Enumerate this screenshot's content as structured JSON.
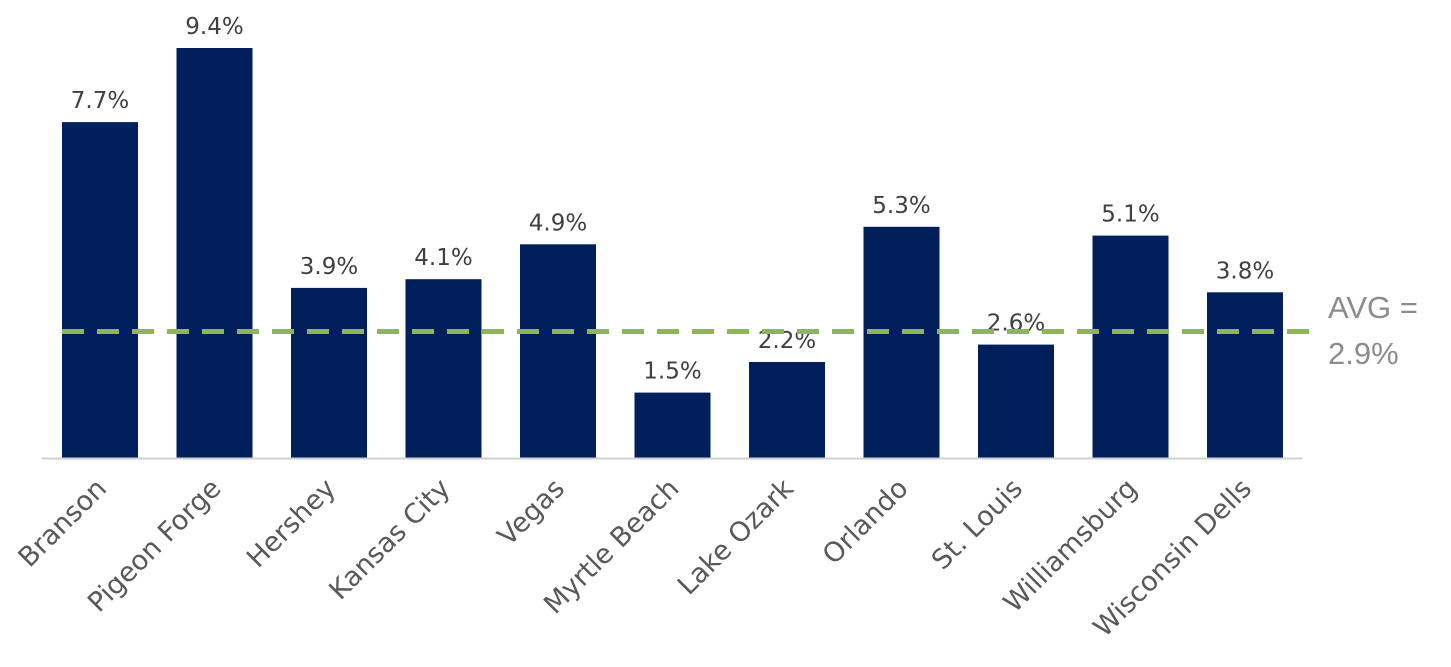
{
  "chart_data": {
    "type": "bar",
    "title": "",
    "xlabel": "",
    "ylabel": "",
    "categories": [
      "Branson",
      "Pigeon Forge",
      "Hershey",
      "Kansas City",
      "Vegas",
      "Myrtle Beach",
      "Lake Ozark",
      "Orlando",
      "St. Louis",
      "Williamsburg",
      "Wisconsin Dells"
    ],
    "values": [
      7.7,
      9.4,
      3.9,
      4.1,
      4.9,
      1.5,
      2.2,
      5.3,
      2.6,
      5.1,
      3.8
    ],
    "value_labels": [
      "7.7%",
      "9.4%",
      "3.9%",
      "4.1%",
      "4.9%",
      "1.5%",
      "2.2%",
      "5.3%",
      "2.6%",
      "5.1%",
      "3.8%"
    ],
    "ylim": [
      0,
      9.4
    ],
    "grid": false,
    "bar_color": "#001f5b",
    "reference_line": {
      "value": 2.9,
      "label_line1": "AVG =",
      "label_line2": "2.9%",
      "color": "#8db55a",
      "style": "dashed"
    },
    "axis_color": "#d0d0d0"
  }
}
